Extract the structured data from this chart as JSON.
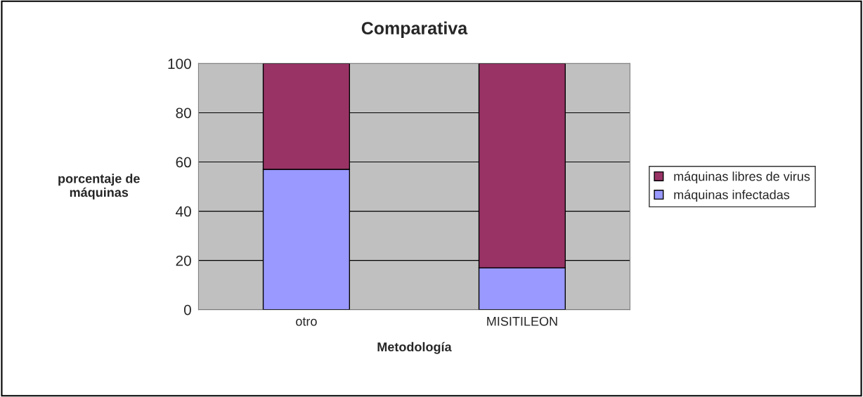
{
  "chart_data": {
    "type": "bar",
    "title": "Comparativa",
    "xlabel": "Metodología",
    "ylabel": "porcentaje de\nmáquinas",
    "categories": [
      "otro",
      "MISITILEON"
    ],
    "stacked": true,
    "series": [
      {
        "name": "máquinas infectadas",
        "color": "#9999ff",
        "values": [
          57,
          17
        ]
      },
      {
        "name": "máquinas libres de virus",
        "color": "#993366",
        "values": [
          43,
          83
        ]
      }
    ],
    "ylim": [
      0,
      100
    ],
    "yticks": [
      0,
      20,
      40,
      60,
      80,
      100
    ],
    "grid": "y",
    "legend": "right"
  }
}
